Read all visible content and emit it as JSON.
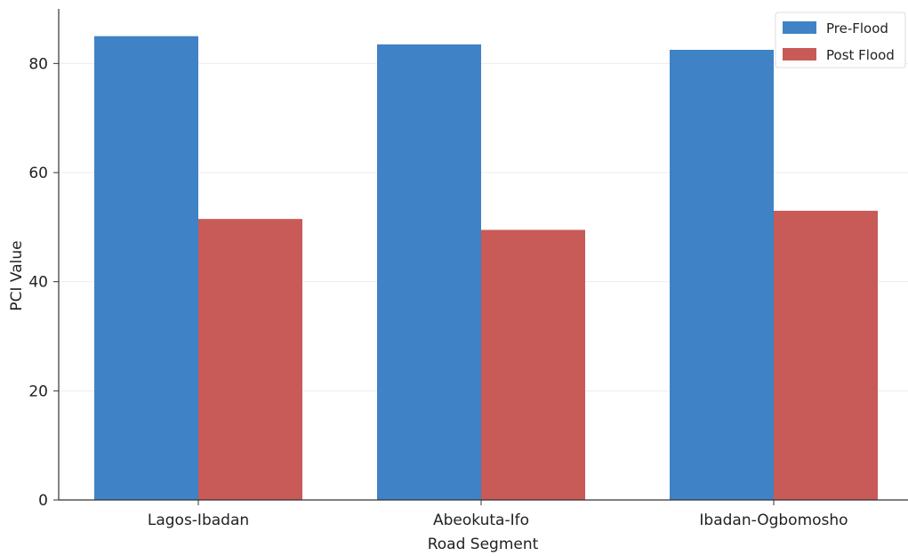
{
  "chart_data": {
    "type": "bar",
    "categories": [
      "Lagos-Ibadan",
      "Abeokuta-Ifo",
      "Ibadan-Ogbomosho"
    ],
    "series": [
      {
        "name": "Pre-Flood",
        "values": [
          85,
          83.5,
          82.5
        ],
        "color": "#3f82c5"
      },
      {
        "name": "Post Flood",
        "values": [
          51.5,
          49.5,
          53
        ],
        "color": "#c85a57"
      }
    ],
    "title": "",
    "xlabel": "Road Segment",
    "ylabel": "PCI Value",
    "ylim": [
      0,
      90
    ],
    "yticks": [
      0,
      20,
      40,
      60,
      80
    ],
    "grid": true,
    "legend": "top-right"
  }
}
